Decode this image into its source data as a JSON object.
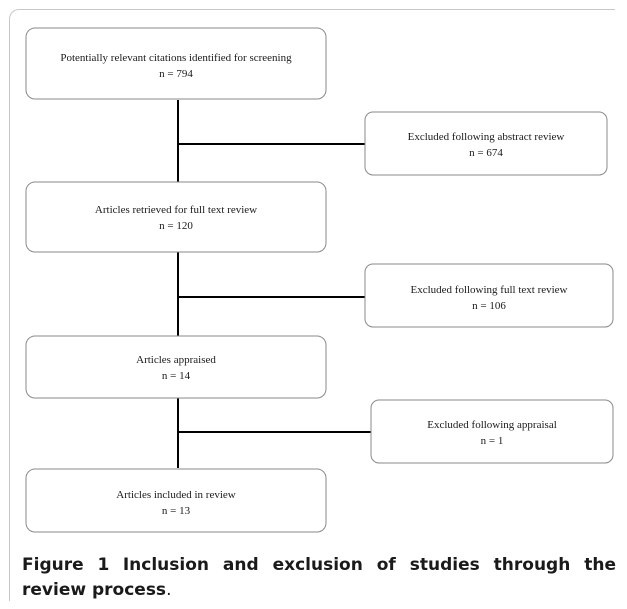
{
  "flowchart": {
    "stages": [
      {
        "text": "Potentially relevant citations identified for screening",
        "count": "n = 794"
      },
      {
        "text": "Articles retrieved for full text review",
        "count": "n = 120"
      },
      {
        "text": "Articles appraised",
        "count": "n = 14"
      },
      {
        "text": "Articles included in review",
        "count": "n = 13"
      }
    ],
    "exclusions": [
      {
        "text": "Excluded following abstract review",
        "count": "n = 674"
      },
      {
        "text": "Excluded following full text review",
        "count": "n = 106"
      },
      {
        "text": "Excluded following appraisal",
        "count": "n = 1"
      }
    ]
  },
  "caption": {
    "label": "Figure 1",
    "title": "Inclusion and exclusion of studies through the review process",
    "end": "."
  },
  "colors": {
    "box_border": "#8a8a8a",
    "connector": "#000000",
    "text": "#1a1a1a"
  }
}
